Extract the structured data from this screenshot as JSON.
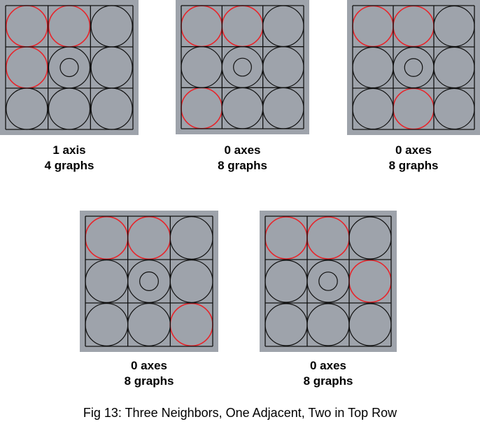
{
  "colors": {
    "background": "#9ea3ab",
    "grid_line": "#111111",
    "circle_default": "#111111",
    "circle_highlight": "#e8242a"
  },
  "panels": [
    {
      "axes_label": "1 axis",
      "graphs_label": "4 graphs",
      "highlighted_cells": [
        [
          0,
          0
        ],
        [
          0,
          1
        ],
        [
          1,
          0
        ]
      ],
      "center_cell": [
        1,
        1
      ]
    },
    {
      "axes_label": "0 axes",
      "graphs_label": "8 graphs",
      "highlighted_cells": [
        [
          0,
          0
        ],
        [
          0,
          1
        ],
        [
          2,
          0
        ]
      ],
      "center_cell": [
        1,
        1
      ]
    },
    {
      "axes_label": "0 axes",
      "graphs_label": "8 graphs",
      "highlighted_cells": [
        [
          0,
          0
        ],
        [
          0,
          1
        ],
        [
          2,
          1
        ]
      ],
      "center_cell": [
        1,
        1
      ]
    },
    {
      "axes_label": "0 axes",
      "graphs_label": "8 graphs",
      "highlighted_cells": [
        [
          0,
          0
        ],
        [
          0,
          1
        ],
        [
          2,
          2
        ]
      ],
      "center_cell": [
        1,
        1
      ]
    },
    {
      "axes_label": "0 axes",
      "graphs_label": "8 graphs",
      "highlighted_cells": [
        [
          0,
          0
        ],
        [
          0,
          1
        ],
        [
          1,
          2
        ]
      ],
      "center_cell": [
        1,
        1
      ]
    }
  ],
  "caption": "Fig 13: Three Neighbors, One Adjacent, Two in Top Row"
}
